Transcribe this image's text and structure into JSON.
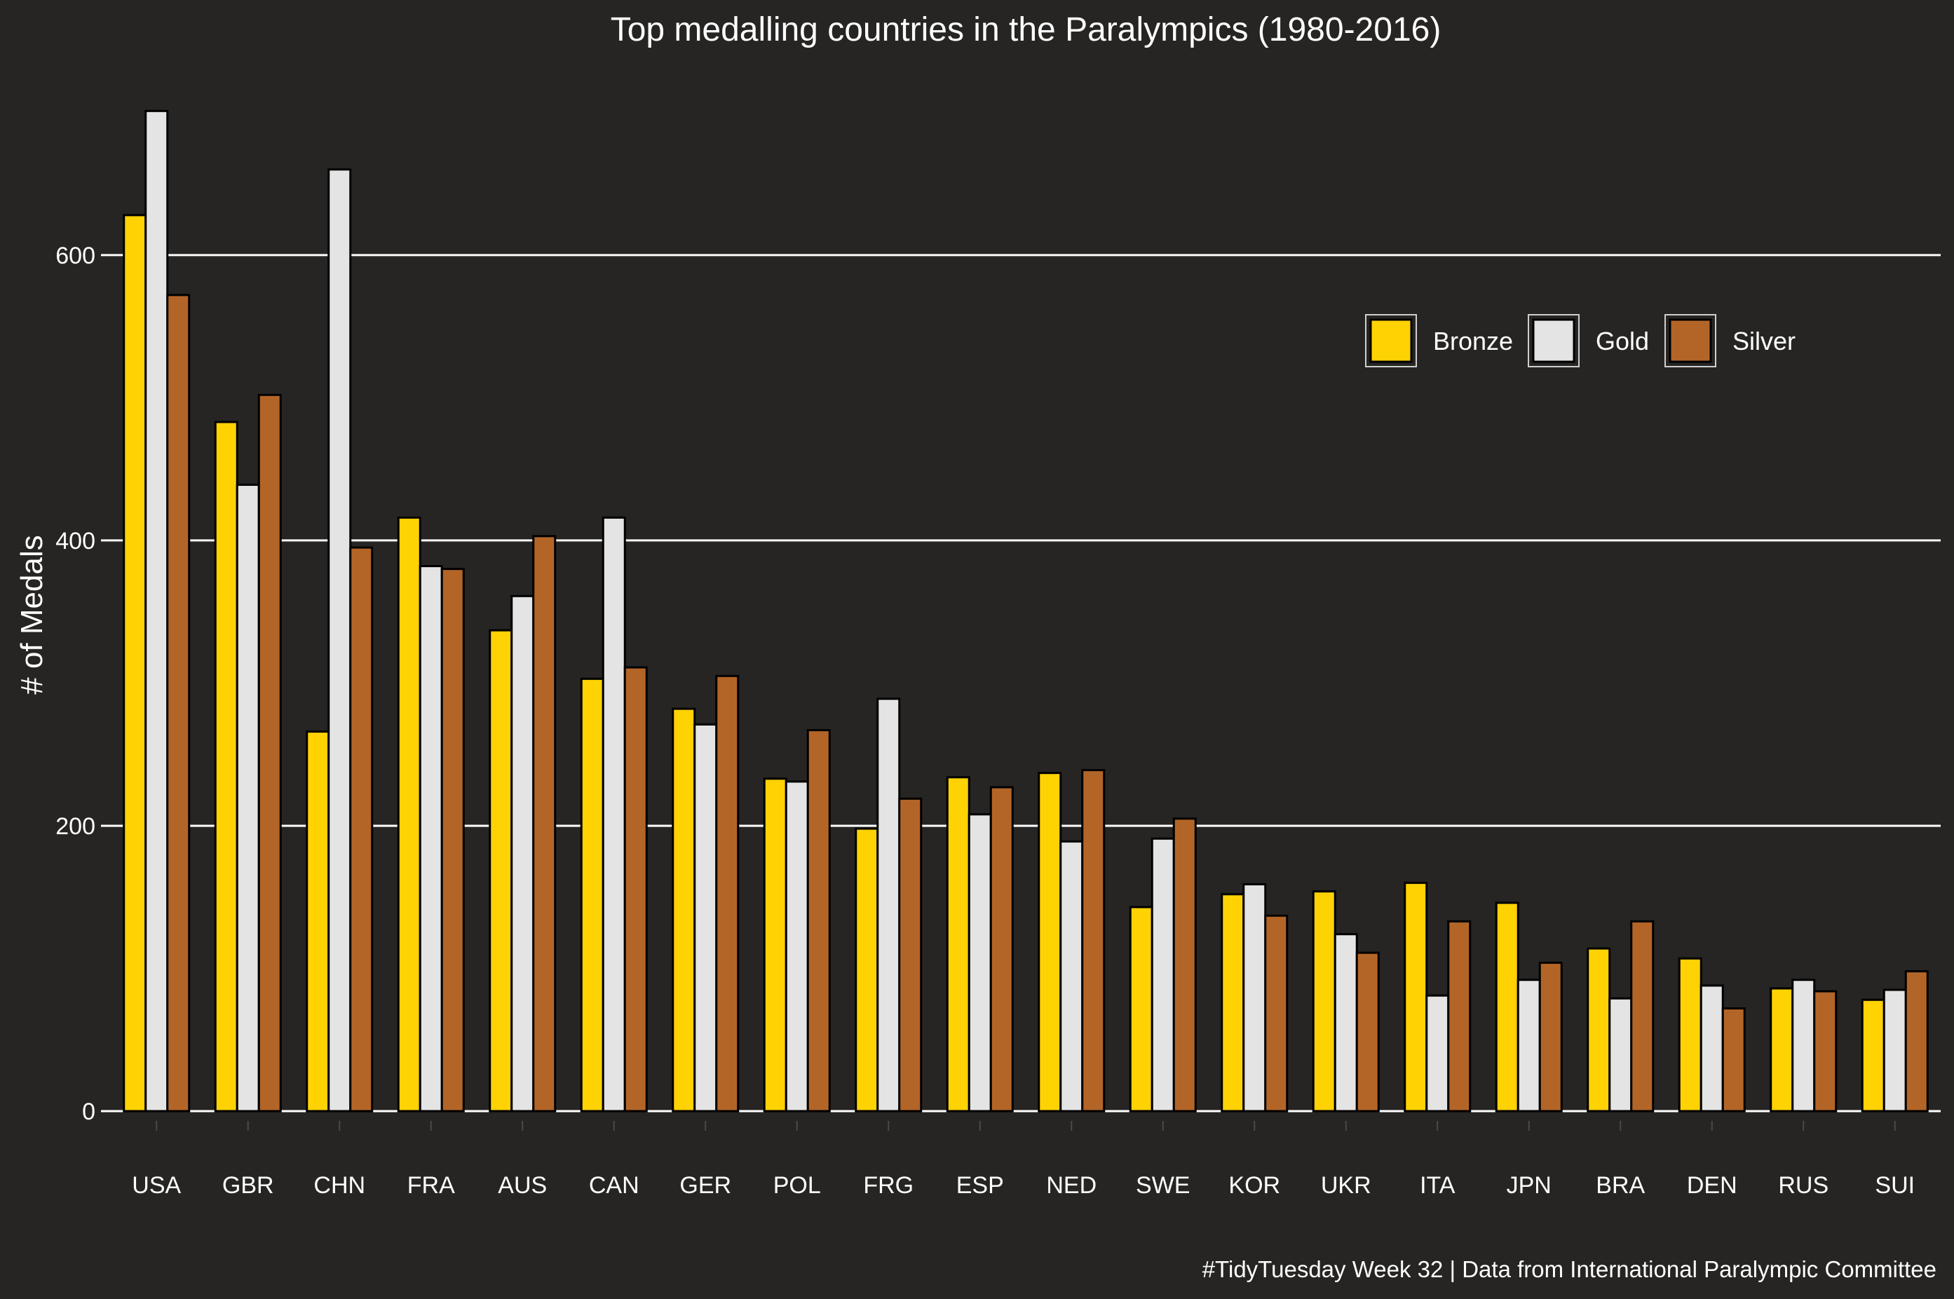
{
  "colors": {
    "background": "#262523",
    "grid": "#ffffff",
    "bar_outline": "#000000",
    "text": "#ffffff",
    "Bronze": "#FFD204",
    "Gold": "#E4E4E4",
    "Silver": "#B36528"
  },
  "chart_data": {
    "type": "bar",
    "title": "Top medalling countries in the Paralympics (1980-2016)",
    "xlabel": "",
    "ylabel": "# of Medals",
    "caption": "#TidyTuesday Week 32 | Data from International Paralympic Committee",
    "ylim": [
      0,
      710
    ],
    "yticks": [
      0,
      200,
      400,
      600
    ],
    "grid": "horizontal",
    "legend_position": "top-right",
    "categories": [
      "USA",
      "GBR",
      "CHN",
      "FRA",
      "AUS",
      "CAN",
      "GER",
      "POL",
      "FRG",
      "ESP",
      "NED",
      "SWE",
      "KOR",
      "UKR",
      "ITA",
      "JPN",
      "BRA",
      "DEN",
      "RUS",
      "SUI"
    ],
    "series": [
      {
        "name": "Bronze",
        "values": [
          628,
          483,
          266,
          416,
          337,
          303,
          282,
          233,
          198,
          234,
          237,
          143,
          152,
          154,
          160,
          146,
          114,
          107,
          86,
          78
        ]
      },
      {
        "name": "Gold",
        "values": [
          701,
          439,
          660,
          382,
          361,
          416,
          271,
          231,
          289,
          208,
          189,
          191,
          159,
          124,
          81,
          92,
          79,
          88,
          92,
          85
        ]
      },
      {
        "name": "Silver",
        "values": [
          572,
          502,
          395,
          380,
          403,
          311,
          305,
          267,
          219,
          227,
          239,
          205,
          137,
          111,
          133,
          104,
          133,
          72,
          84,
          98
        ]
      }
    ]
  }
}
